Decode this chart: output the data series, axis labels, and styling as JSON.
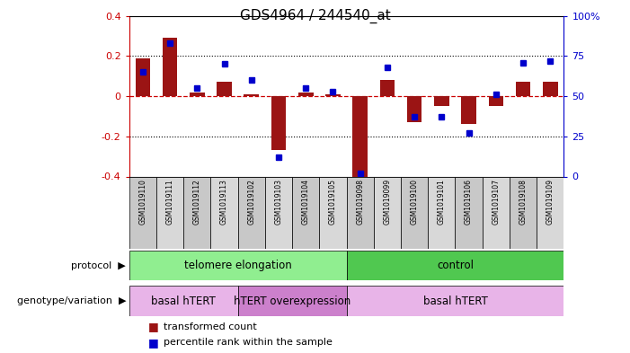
{
  "title": "GDS4964 / 244540_at",
  "samples": [
    "GSM1019110",
    "GSM1019111",
    "GSM1019112",
    "GSM1019113",
    "GSM1019102",
    "GSM1019103",
    "GSM1019104",
    "GSM1019105",
    "GSM1019098",
    "GSM1019099",
    "GSM1019100",
    "GSM1019101",
    "GSM1019106",
    "GSM1019107",
    "GSM1019108",
    "GSM1019109"
  ],
  "bar_values": [
    0.19,
    0.29,
    0.02,
    0.07,
    0.01,
    -0.27,
    0.02,
    0.01,
    -0.4,
    0.08,
    -0.13,
    -0.05,
    -0.14,
    -0.05,
    0.07,
    0.07
  ],
  "dot_values": [
    0.65,
    0.83,
    0.55,
    0.7,
    0.6,
    0.12,
    0.55,
    0.53,
    0.02,
    0.68,
    0.37,
    0.37,
    0.27,
    0.51,
    0.71,
    0.72
  ],
  "ylim": [
    -0.4,
    0.4
  ],
  "y2lim": [
    0,
    1
  ],
  "yticks": [
    -0.4,
    -0.2,
    0.0,
    0.2,
    0.4
  ],
  "y2ticks": [
    0,
    0.25,
    0.5,
    0.75,
    1.0
  ],
  "y2ticklabels": [
    "0",
    "25",
    "50",
    "75",
    "100%"
  ],
  "bar_color": "#9B1414",
  "dot_color": "#0000CC",
  "zero_line_color": "#CC0000",
  "grid_color": "#000000",
  "protocol_groups": [
    {
      "label": "telomere elongation",
      "start": 0,
      "end": 8,
      "color": "#90EE90"
    },
    {
      "label": "control",
      "start": 8,
      "end": 16,
      "color": "#50C850"
    }
  ],
  "genotype_groups": [
    {
      "label": "basal hTERT",
      "start": 0,
      "end": 4,
      "color": "#E8B4E8"
    },
    {
      "label": "hTERT overexpression",
      "start": 4,
      "end": 8,
      "color": "#CC80CC"
    },
    {
      "label": "basal hTERT",
      "start": 8,
      "end": 16,
      "color": "#E8B4E8"
    }
  ],
  "protocol_label": "protocol",
  "genotype_label": "genotype/variation",
  "legend_bar": "transformed count",
  "legend_dot": "percentile rank within the sample",
  "axis_color_left": "#CC0000",
  "axis_color_right": "#0000CC",
  "sample_colors": [
    "#C8C8C8",
    "#D8D8D8"
  ]
}
